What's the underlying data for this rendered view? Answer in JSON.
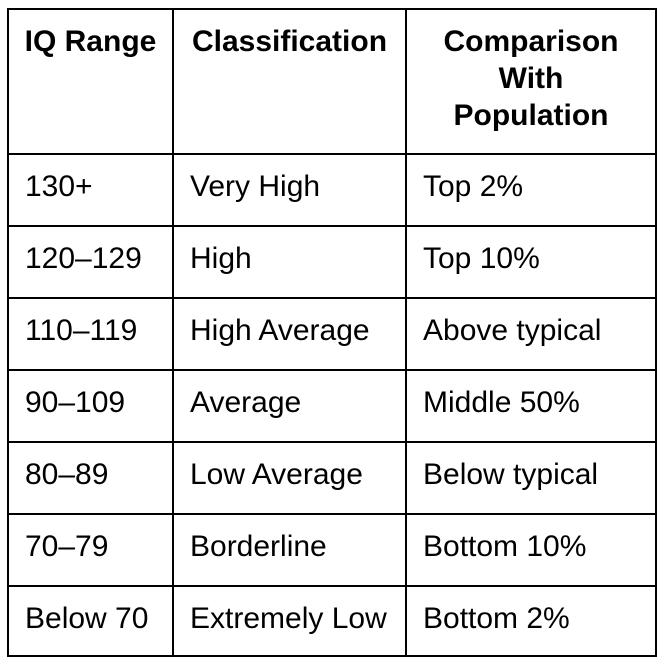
{
  "table": {
    "columns": [
      {
        "label": "IQ Range"
      },
      {
        "label": "Classification"
      },
      {
        "label": "Comparison With Population"
      }
    ],
    "rows": [
      [
        "130+",
        "Very High",
        "Top 2%"
      ],
      [
        "120–129",
        "High",
        "Top 10%"
      ],
      [
        "110–119",
        "High Average",
        "Above typical"
      ],
      [
        "90–109",
        "Average",
        "Middle 50%"
      ],
      [
        "80–89",
        "Low Average",
        "Below typical"
      ],
      [
        "70–79",
        "Borderline",
        "Bottom 10%"
      ],
      [
        "Below 70",
        "Extremely Low",
        "Bottom 2%"
      ]
    ],
    "colors": {
      "border": "#000000",
      "text": "#000000",
      "background": "#ffffff"
    }
  }
}
